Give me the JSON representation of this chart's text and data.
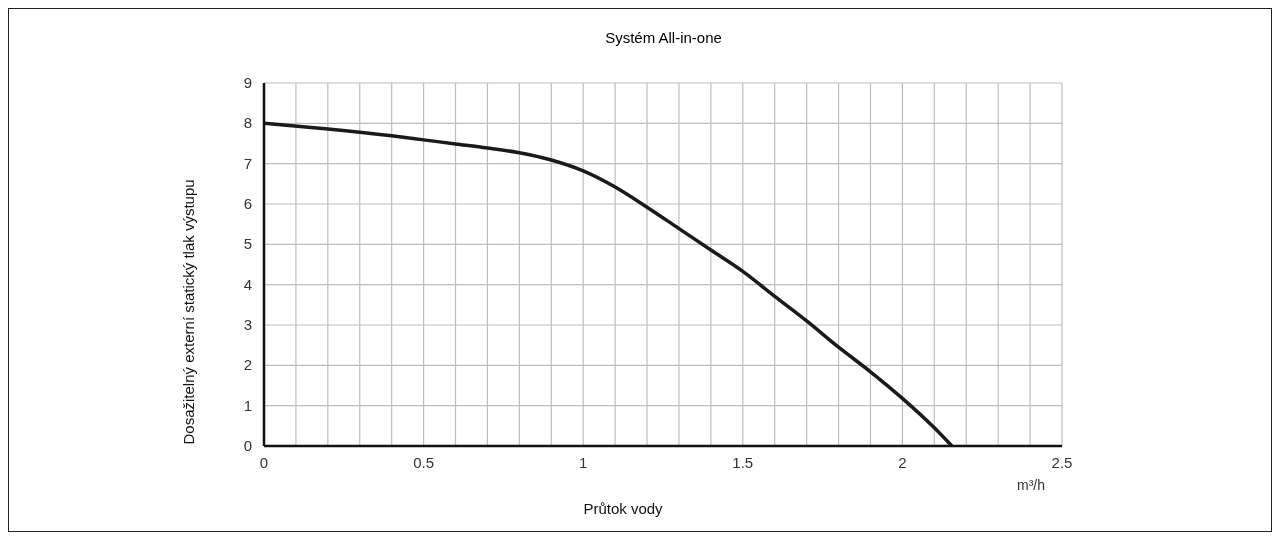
{
  "chart_data": {
    "type": "line",
    "title": "Systém All-in-one",
    "xlabel": "Průtok vody",
    "ylabel": "Dosažitelný externí statický tlak výstupu",
    "annotations": [
      "m³/h"
    ],
    "x": [
      0,
      0.2,
      0.4,
      0.5,
      0.6,
      0.7,
      0.8,
      0.9,
      1.0,
      1.1,
      1.2,
      1.3,
      1.4,
      1.5,
      1.6,
      1.7,
      1.8,
      1.9,
      2.0,
      2.1,
      2.155
    ],
    "series": [
      {
        "color": "#1a1a1a",
        "values": [
          8.0,
          7.86,
          7.69,
          7.59,
          7.49,
          7.39,
          7.27,
          7.09,
          6.82,
          6.42,
          5.92,
          5.39,
          4.86,
          4.33,
          3.71,
          3.1,
          2.45,
          1.84,
          1.18,
          0.45,
          0
        ]
      }
    ],
    "xlim": [
      0,
      2.5
    ],
    "ylim": [
      0,
      9
    ],
    "xticks": [
      0,
      {
        "value": 0.1,
        "label": null
      },
      {
        "value": 0.2,
        "label": null
      },
      {
        "value": 0.3,
        "label": null
      },
      {
        "value": 0.4,
        "label": null
      },
      0.5,
      {
        "value": 0.6,
        "label": null
      },
      {
        "value": 0.7,
        "label": null
      },
      {
        "value": 0.8,
        "label": null
      },
      {
        "value": 0.9,
        "label": null
      },
      1,
      {
        "value": 1.1,
        "label": null
      },
      {
        "value": 1.2,
        "label": null
      },
      {
        "value": 1.3,
        "label": null
      },
      {
        "value": 1.4,
        "label": null
      },
      1.5,
      {
        "value": 1.6,
        "label": null
      },
      {
        "value": 1.7,
        "label": null
      },
      {
        "value": 1.8,
        "label": null
      },
      {
        "value": 1.9,
        "label": null
      },
      2,
      {
        "value": 2.1,
        "label": null
      },
      {
        "value": 2.2,
        "label": null
      },
      {
        "value": 2.3,
        "label": null
      },
      {
        "value": 2.4,
        "label": null
      },
      2.5
    ],
    "yticks": [
      0,
      1,
      2,
      3,
      4,
      5,
      6,
      7,
      8,
      9
    ],
    "grid": true,
    "marker": "none",
    "line_style": "solid"
  }
}
